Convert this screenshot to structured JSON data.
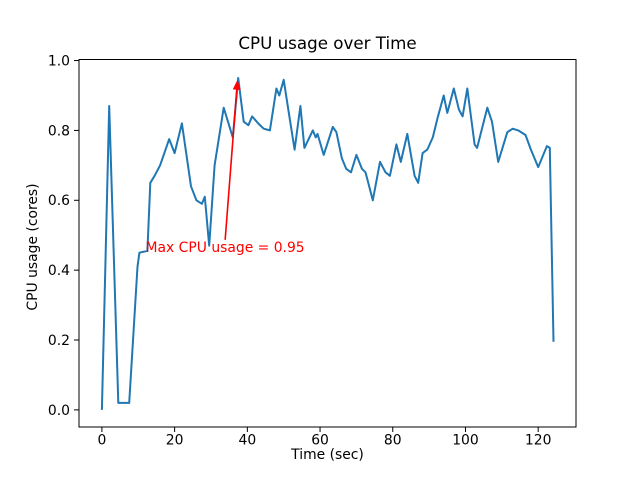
{
  "figure": {
    "title": "CPU usage over Time",
    "xlabel": "Time (sec)",
    "ylabel": "CPU usage (cores)"
  },
  "chart_data": {
    "type": "line",
    "title": "CPU usage over Time",
    "xlabel": "Time (sec)",
    "ylabel": "CPU usage (cores)",
    "xlim": [
      -6.3,
      130.4
    ],
    "ylim": [
      -0.049,
      1.003
    ],
    "x_ticks": [
      0,
      20,
      40,
      60,
      80,
      100,
      120
    ],
    "y_ticks": [
      0,
      0.2,
      0.4,
      0.6,
      0.8,
      1.0
    ],
    "y_tick_labels": [
      "0.0",
      "0.2",
      "0.4",
      "0.6",
      "0.8",
      "1.0"
    ],
    "grid": false,
    "legend": "none",
    "line_color": "#1f77b4",
    "axis_color": "#000000",
    "series": [
      {
        "name": "cpu-usage",
        "x": [
          0,
          2,
          4.5,
          6,
          7.5,
          9.8,
          10.3,
          12.5,
          13.3,
          14.5,
          16,
          18.5,
          20,
          22,
          24.5,
          26,
          27.5,
          28.3,
          29.5,
          31,
          33.5,
          36,
          37.5,
          39,
          40.3,
          41.3,
          43,
          44.5,
          46.2,
          48,
          48.8,
          50,
          51.5,
          53,
          54.6,
          55.7,
          58,
          58.8,
          59.3,
          61,
          63.5,
          64.5,
          66,
          67.2,
          68.5,
          70,
          71.5,
          72.5,
          74.5,
          76.5,
          78,
          79.2,
          81,
          82.2,
          84,
          86,
          87,
          88.2,
          89.5,
          91,
          92.3,
          94,
          95,
          96.8,
          98.2,
          99.2,
          100.5,
          102.5,
          103.2,
          106,
          107.3,
          109,
          111.5,
          113,
          114.5,
          116.5,
          118,
          120,
          122.4,
          123.2,
          124.2
        ],
        "y": [
          0.0,
          0.87,
          0.02,
          0.02,
          0.02,
          0.41,
          0.45,
          0.455,
          0.65,
          0.67,
          0.7,
          0.775,
          0.735,
          0.82,
          0.64,
          0.6,
          0.59,
          0.61,
          0.47,
          0.7,
          0.865,
          0.78,
          0.95,
          0.825,
          0.815,
          0.84,
          0.82,
          0.805,
          0.8,
          0.92,
          0.9,
          0.945,
          0.845,
          0.745,
          0.87,
          0.75,
          0.8,
          0.78,
          0.79,
          0.73,
          0.81,
          0.795,
          0.72,
          0.69,
          0.68,
          0.73,
          0.69,
          0.68,
          0.6,
          0.71,
          0.68,
          0.67,
          0.76,
          0.71,
          0.79,
          0.67,
          0.65,
          0.735,
          0.745,
          0.78,
          0.835,
          0.9,
          0.85,
          0.92,
          0.86,
          0.84,
          0.92,
          0.76,
          0.75,
          0.865,
          0.825,
          0.71,
          0.795,
          0.805,
          0.8,
          0.787,
          0.745,
          0.695,
          0.755,
          0.75,
          0.195
        ]
      }
    ],
    "annotation": {
      "text": "Max CPU usage = 0.95",
      "color": "#ff0000",
      "arrow_tip": [
        37.3,
        0.945
      ],
      "arrow_tail": [
        33.9,
        0.487
      ],
      "text_pos": [
        12,
        0.45
      ]
    }
  }
}
